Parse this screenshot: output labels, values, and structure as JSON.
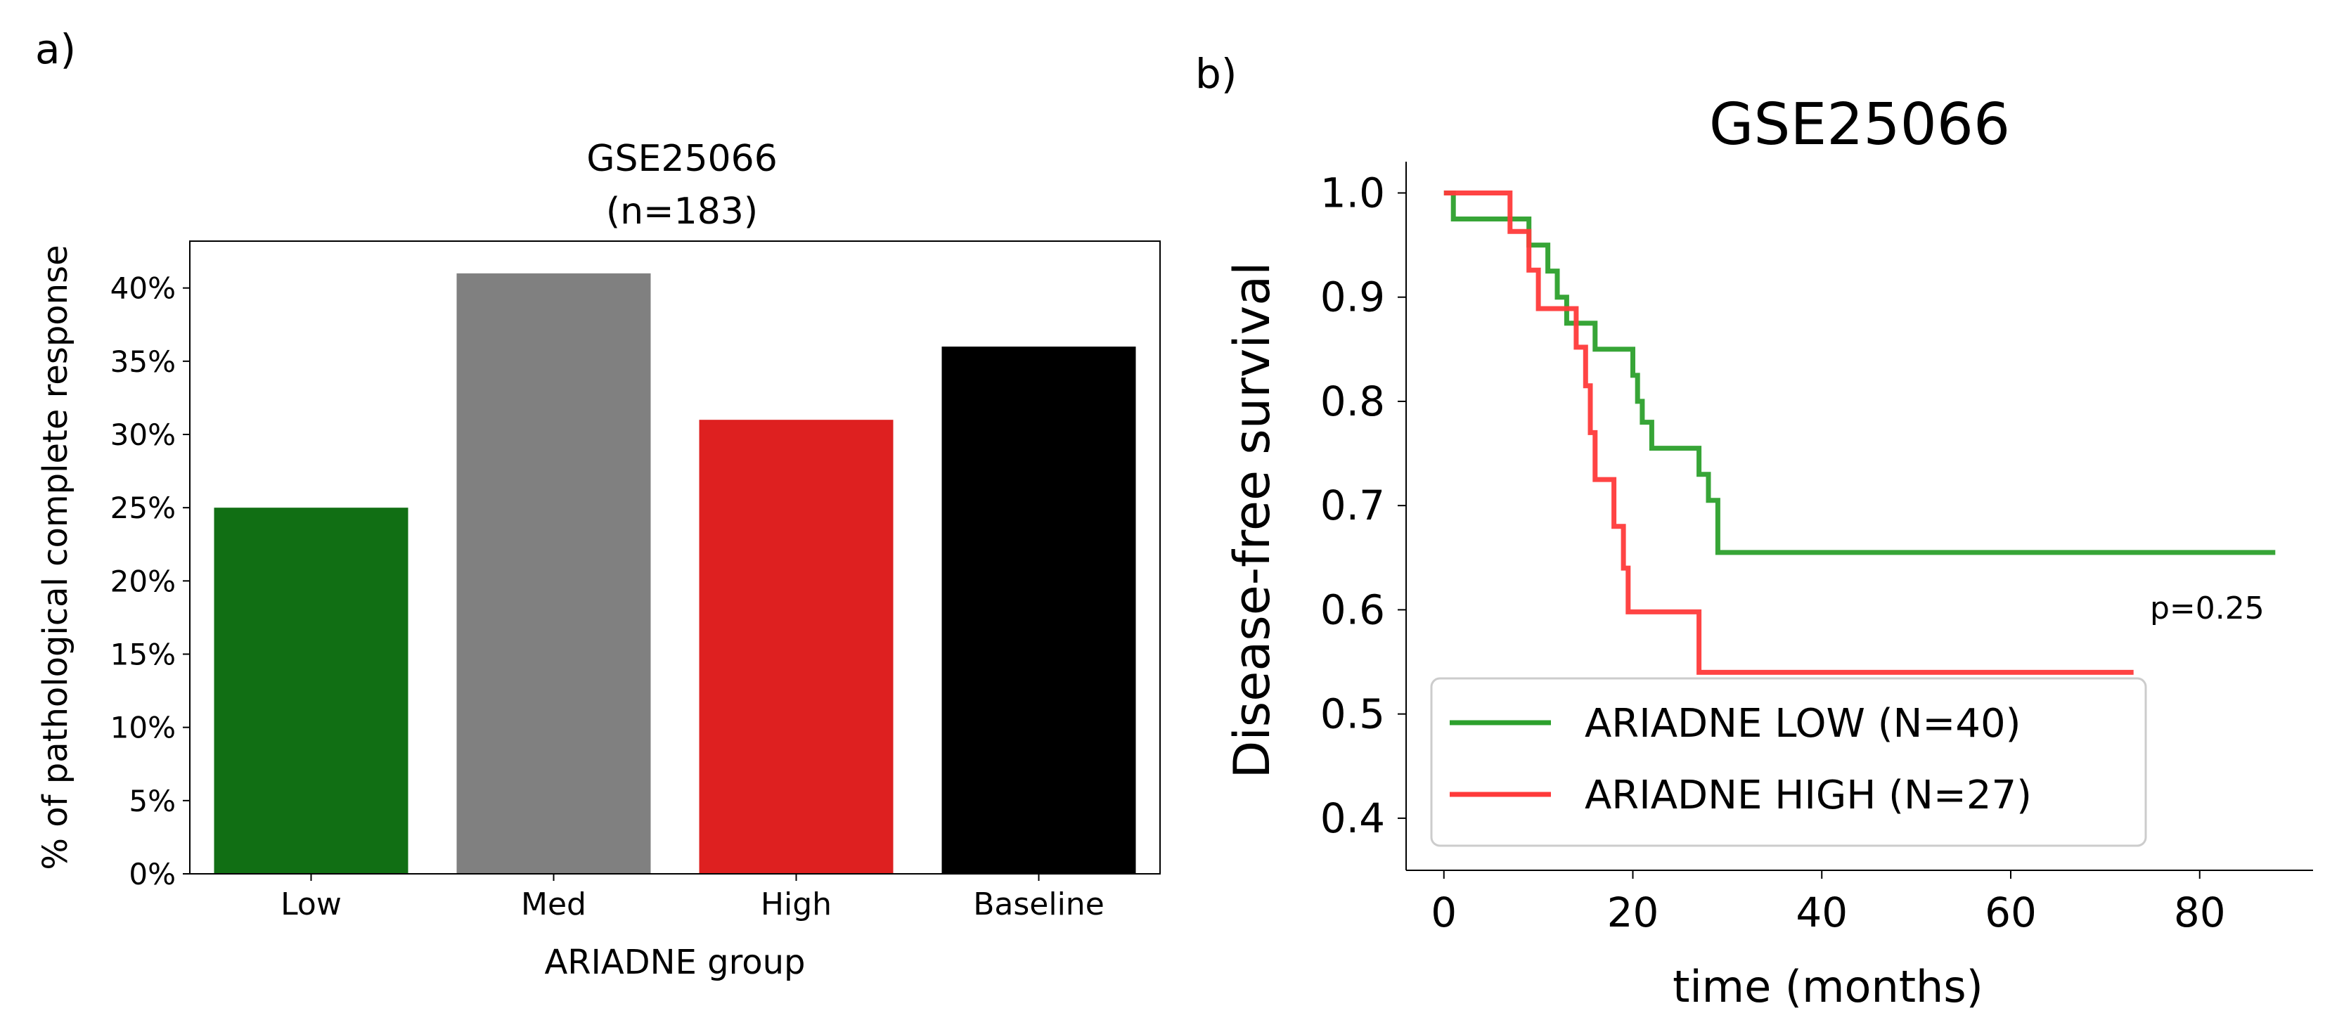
{
  "panel_labels": {
    "a": "a)",
    "b": "b)"
  },
  "colors": {
    "low_bar": "#116f14",
    "med_bar": "#808080",
    "high_bar": "#de2020",
    "baseline_bar": "#000000",
    "km_low": "#2ca02c",
    "km_high": "#ff3a3a"
  },
  "chart_data": [
    {
      "id": "panel-a",
      "type": "bar",
      "title_line1": "GSE25066",
      "title_line2": "(n=183)",
      "xlabel": "ARIADNE group",
      "ylabel": "% of pathological complete response",
      "categories": [
        "Low",
        "Med",
        "High",
        "Baseline"
      ],
      "values": [
        25,
        41,
        31,
        36
      ],
      "bar_colors": [
        "#116f14",
        "#808080",
        "#de2020",
        "#000000"
      ],
      "ylim": [
        0,
        43.2
      ],
      "yticks": [
        0,
        5,
        10,
        15,
        20,
        25,
        30,
        35,
        40
      ],
      "ytick_labels": [
        "0%",
        "5%",
        "10%",
        "15%",
        "20%",
        "25%",
        "30%",
        "35%",
        "40%"
      ],
      "grid": false
    },
    {
      "id": "panel-b",
      "type": "line",
      "subtype": "kaplan-meier",
      "title": "GSE25066",
      "xlabel": "time (months)",
      "ylabel": "Disease-free survival",
      "xlim": [
        -4,
        92
      ],
      "ylim": [
        0.35,
        1.03
      ],
      "xticks": [
        0,
        20,
        40,
        60,
        80
      ],
      "xtick_labels": [
        "0",
        "20",
        "40",
        "60",
        "80"
      ],
      "yticks": [
        0.4,
        0.5,
        0.6,
        0.7,
        0.8,
        0.9,
        1.0
      ],
      "ytick_labels": [
        "0.4",
        "0.5",
        "0.6",
        "0.7",
        "0.8",
        "0.9",
        "1.0"
      ],
      "annotation": "p=0.25",
      "legend_position": "lower-left",
      "series": [
        {
          "name": "ARIADNE LOW (N=40)",
          "color": "#2ca02c",
          "points": [
            [
              0,
              1.0
            ],
            [
              1,
              1.0
            ],
            [
              1,
              0.975
            ],
            [
              5,
              0.975
            ],
            [
              5,
              0.975
            ],
            [
              9,
              0.975
            ],
            [
              9,
              0.95
            ],
            [
              11,
              0.95
            ],
            [
              11,
              0.925
            ],
            [
              12,
              0.925
            ],
            [
              12,
              0.9
            ],
            [
              13,
              0.9
            ],
            [
              13,
              0.875
            ],
            [
              16,
              0.875
            ],
            [
              16,
              0.85
            ],
            [
              20,
              0.85
            ],
            [
              20,
              0.825
            ],
            [
              20.5,
              0.825
            ],
            [
              20.5,
              0.8
            ],
            [
              21,
              0.8
            ],
            [
              21,
              0.78
            ],
            [
              22,
              0.78
            ],
            [
              22,
              0.755
            ],
            [
              27,
              0.755
            ],
            [
              27,
              0.73
            ],
            [
              28,
              0.73
            ],
            [
              28,
              0.705
            ],
            [
              29,
              0.705
            ],
            [
              29,
              0.655
            ],
            [
              88,
              0.655
            ]
          ]
        },
        {
          "name": "ARIADNE HIGH (N=27)",
          "color": "#ff3a3a",
          "points": [
            [
              0,
              1.0
            ],
            [
              7,
              1.0
            ],
            [
              7,
              0.963
            ],
            [
              9,
              0.963
            ],
            [
              9,
              0.926
            ],
            [
              10,
              0.926
            ],
            [
              10,
              0.889
            ],
            [
              14,
              0.889
            ],
            [
              14,
              0.852
            ],
            [
              15,
              0.852
            ],
            [
              15,
              0.815
            ],
            [
              15.5,
              0.815
            ],
            [
              15.5,
              0.77
            ],
            [
              16,
              0.77
            ],
            [
              16,
              0.725
            ],
            [
              18,
              0.725
            ],
            [
              18,
              0.68
            ],
            [
              19,
              0.68
            ],
            [
              19,
              0.64
            ],
            [
              19.5,
              0.64
            ],
            [
              19.5,
              0.598
            ],
            [
              27,
              0.598
            ],
            [
              27,
              0.54
            ],
            [
              73,
              0.54
            ]
          ]
        }
      ]
    }
  ]
}
